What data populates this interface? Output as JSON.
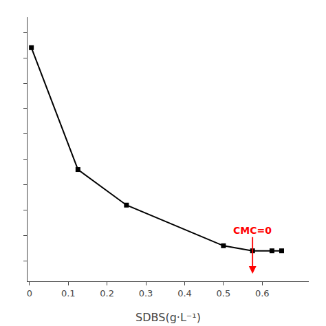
{
  "chart_data": {
    "type": "line",
    "x": [
      0.005,
      0.125,
      0.25,
      0.5,
      0.575,
      0.625,
      0.65
    ],
    "values": [
      72,
      48,
      41,
      33,
      32,
      32,
      32
    ],
    "color": "black",
    "marker": "square",
    "line_style": "solid",
    "x_label": "SDBS(g·L⁻¹)",
    "xlim": [
      -0.005,
      0.72
    ],
    "ylim": [
      26,
      78
    ],
    "xticks": [
      0.0,
      0.1,
      0.2,
      0.3,
      0.4,
      0.5,
      0.6
    ],
    "yticks": [
      30,
      35,
      40,
      45,
      50,
      55,
      60,
      65,
      70,
      75
    ],
    "tick_labels": "x",
    "grid": false,
    "annotations": [
      {
        "text": "CMC=0",
        "x": 0.575,
        "y": 36,
        "arrow_y": 27.5,
        "color": "red"
      }
    ]
  }
}
